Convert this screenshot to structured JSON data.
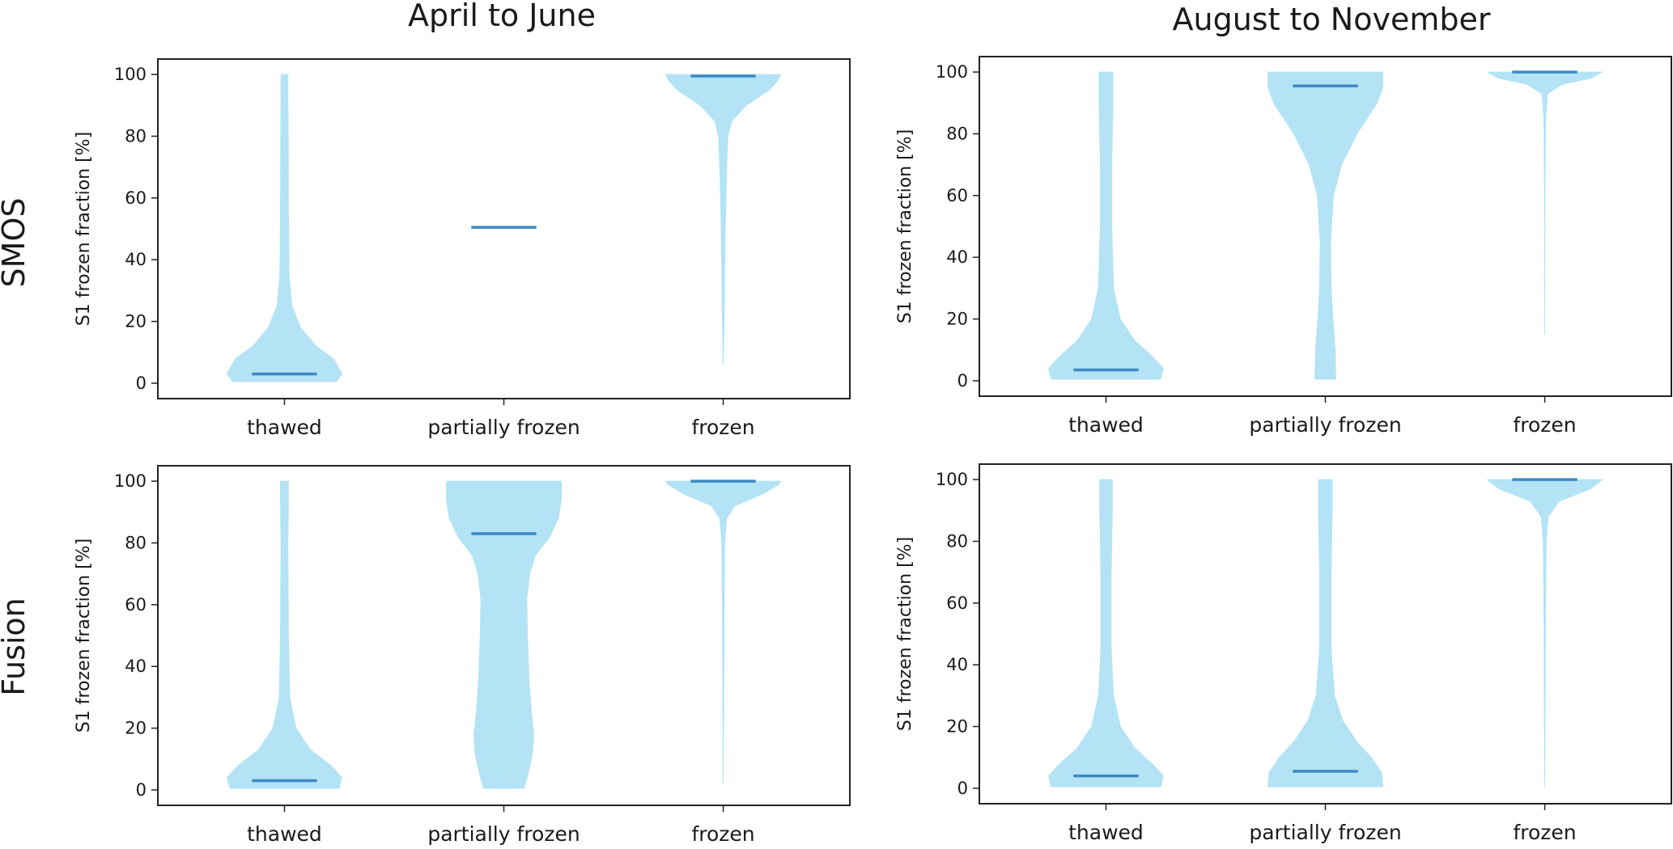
{
  "figure": {
    "column_titles": [
      "April to June",
      "August to November"
    ],
    "row_titles": [
      "SMOS",
      "Fusion"
    ]
  },
  "colors": {
    "violin_fill": "#b3e3f5",
    "median_line": "#3d88c4",
    "axis": "#222222"
  },
  "chart_data": [
    {
      "type": "violin",
      "panel": "SMOS / April to June",
      "categories": [
        "thawed",
        "partially frozen",
        "frozen"
      ],
      "ylabel": "S1 frozen fraction [%]",
      "ylim": [
        -5,
        105
      ],
      "yticks": [
        0,
        20,
        40,
        60,
        80,
        100
      ],
      "medians": [
        3,
        50.5,
        99.5
      ],
      "violins": [
        {
          "name": "thawed",
          "profile": [
            [
              0.5,
              0.9
            ],
            [
              3,
              1.0
            ],
            [
              8,
              0.85
            ],
            [
              12,
              0.55
            ],
            [
              18,
              0.28
            ],
            [
              25,
              0.13
            ],
            [
              35,
              0.08
            ],
            [
              55,
              0.07
            ],
            [
              80,
              0.065
            ],
            [
              95,
              0.06
            ],
            [
              100,
              0.06
            ]
          ]
        },
        {
          "name": "partially frozen",
          "profile": []
        },
        {
          "name": "frozen",
          "profile": [
            [
              6,
              0.0
            ],
            [
              20,
              0.015
            ],
            [
              50,
              0.035
            ],
            [
              70,
              0.06
            ],
            [
              80,
              0.08
            ],
            [
              85,
              0.15
            ],
            [
              90,
              0.4
            ],
            [
              95,
              0.8
            ],
            [
              98,
              0.95
            ],
            [
              100,
              1.0
            ]
          ]
        }
      ]
    },
    {
      "type": "violin",
      "panel": "SMOS / August to November",
      "categories": [
        "thawed",
        "partially frozen",
        "frozen"
      ],
      "ylabel": "S1 frozen fraction [%]",
      "ylim": [
        -5,
        105
      ],
      "yticks": [
        0,
        20,
        40,
        60,
        80,
        100
      ],
      "medians": [
        3.5,
        95.5,
        100
      ],
      "violins": [
        {
          "name": "thawed",
          "profile": [
            [
              0.5,
              0.95
            ],
            [
              4,
              1.0
            ],
            [
              8,
              0.8
            ],
            [
              13,
              0.5
            ],
            [
              20,
              0.25
            ],
            [
              30,
              0.13
            ],
            [
              50,
              0.1
            ],
            [
              70,
              0.1
            ],
            [
              90,
              0.12
            ],
            [
              100,
              0.12
            ]
          ]
        },
        {
          "name": "partially frozen",
          "profile": [
            [
              0.5,
              0.18
            ],
            [
              10,
              0.17
            ],
            [
              20,
              0.13
            ],
            [
              30,
              0.1
            ],
            [
              45,
              0.09
            ],
            [
              60,
              0.14
            ],
            [
              70,
              0.28
            ],
            [
              80,
              0.55
            ],
            [
              90,
              0.9
            ],
            [
              95,
              1.0
            ],
            [
              100,
              1.0
            ]
          ]
        },
        {
          "name": "frozen",
          "profile": [
            [
              15,
              0.0
            ],
            [
              60,
              0.004
            ],
            [
              85,
              0.015
            ],
            [
              93,
              0.05
            ],
            [
              96,
              0.3
            ],
            [
              98,
              0.8
            ],
            [
              100,
              1.0
            ]
          ]
        }
      ]
    },
    {
      "type": "violin",
      "panel": "Fusion / April to June",
      "categories": [
        "thawed",
        "partially frozen",
        "frozen"
      ],
      "ylabel": "S1 frozen fraction [%]",
      "ylim": [
        -5,
        105
      ],
      "yticks": [
        0,
        20,
        40,
        60,
        80,
        100
      ],
      "medians": [
        3,
        83,
        100
      ],
      "violins": [
        {
          "name": "thawed",
          "profile": [
            [
              0.5,
              0.95
            ],
            [
              4,
              1.0
            ],
            [
              8,
              0.8
            ],
            [
              13,
              0.45
            ],
            [
              20,
              0.2
            ],
            [
              30,
              0.09
            ],
            [
              50,
              0.07
            ],
            [
              80,
              0.06
            ],
            [
              95,
              0.07
            ],
            [
              100,
              0.07
            ]
          ]
        },
        {
          "name": "partially frozen",
          "profile": [
            [
              0.5,
              0.35
            ],
            [
              5,
              0.42
            ],
            [
              12,
              0.5
            ],
            [
              18,
              0.52
            ],
            [
              25,
              0.48
            ],
            [
              35,
              0.44
            ],
            [
              50,
              0.41
            ],
            [
              62,
              0.4
            ],
            [
              70,
              0.45
            ],
            [
              76,
              0.55
            ],
            [
              82,
              0.8
            ],
            [
              88,
              0.95
            ],
            [
              94,
              1.0
            ],
            [
              100,
              1.0
            ]
          ]
        },
        {
          "name": "frozen",
          "profile": [
            [
              2,
              0.0
            ],
            [
              30,
              0.008
            ],
            [
              60,
              0.015
            ],
            [
              80,
              0.025
            ],
            [
              88,
              0.06
            ],
            [
              92,
              0.2
            ],
            [
              96,
              0.7
            ],
            [
              99,
              0.97
            ],
            [
              100,
              1.0
            ]
          ]
        }
      ]
    },
    {
      "type": "violin",
      "panel": "Fusion / August to November",
      "categories": [
        "thawed",
        "partially frozen",
        "frozen"
      ],
      "ylabel": "S1 frozen fraction [%]",
      "ylim": [
        -5,
        105
      ],
      "yticks": [
        0,
        20,
        40,
        60,
        80,
        100
      ],
      "medians": [
        4,
        5.5,
        100
      ],
      "violins": [
        {
          "name": "thawed",
          "profile": [
            [
              0.5,
              0.95
            ],
            [
              4,
              1.0
            ],
            [
              8,
              0.8
            ],
            [
              13,
              0.5
            ],
            [
              20,
              0.25
            ],
            [
              30,
              0.13
            ],
            [
              45,
              0.09
            ],
            [
              70,
              0.09
            ],
            [
              90,
              0.11
            ],
            [
              100,
              0.11
            ]
          ]
        },
        {
          "name": "partially frozen",
          "profile": [
            [
              0.5,
              1.0
            ],
            [
              5,
              0.98
            ],
            [
              10,
              0.8
            ],
            [
              15,
              0.55
            ],
            [
              22,
              0.3
            ],
            [
              30,
              0.16
            ],
            [
              45,
              0.1
            ],
            [
              70,
              0.1
            ],
            [
              90,
              0.12
            ],
            [
              100,
              0.12
            ]
          ]
        },
        {
          "name": "frozen",
          "profile": [
            [
              0.5,
              0.0
            ],
            [
              30,
              0.008
            ],
            [
              60,
              0.015
            ],
            [
              80,
              0.025
            ],
            [
              88,
              0.06
            ],
            [
              93,
              0.25
            ],
            [
              97,
              0.8
            ],
            [
              100,
              1.0
            ]
          ]
        }
      ]
    }
  ]
}
